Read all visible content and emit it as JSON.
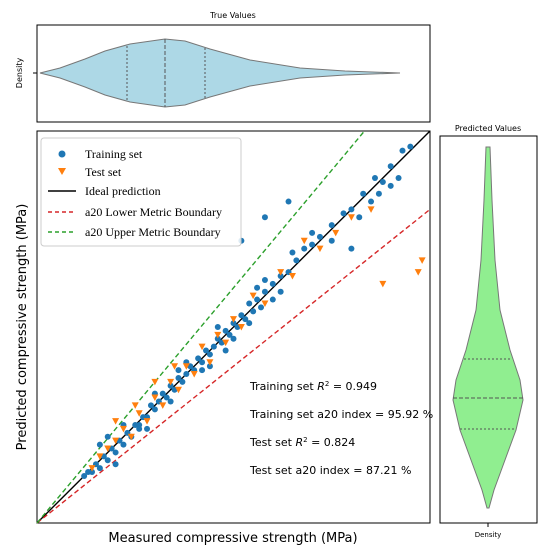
{
  "chart_data": [
    {
      "type": "violin",
      "title": "True Values",
      "ylabel": "Density",
      "color": "#add8e6",
      "orientation": "horizontal",
      "quartile_lines": 3
    },
    {
      "type": "scatter",
      "xlabel": "Measured compressive strength (MPa)",
      "ylabel": "Predicted compressive strength (MPa)",
      "xlim": [
        0,
        100
      ],
      "ylim": [
        0,
        100
      ],
      "legend_position": "top-left",
      "legend": [
        {
          "label": "Training set",
          "marker": "circle",
          "color": "#1f77b4"
        },
        {
          "label": "Test set",
          "marker": "triangle-down",
          "color": "#ff7f0e"
        },
        {
          "label": "Ideal prediction",
          "line": "solid",
          "color": "#000000"
        },
        {
          "label": "a20 Lower Metric Boundary",
          "line": "dashed",
          "color": "#d62728"
        },
        {
          "label": "a20 Upper Metric Boundary",
          "line": "dashed",
          "color": "#2ca02c"
        }
      ],
      "lines": [
        {
          "name": "Ideal prediction",
          "slope": 1.0,
          "color": "#000000",
          "style": "solid"
        },
        {
          "name": "a20 Lower Metric Boundary",
          "slope": 0.8,
          "color": "#d62728",
          "style": "dashed"
        },
        {
          "name": "a20 Upper Metric Boundary",
          "slope": 1.2,
          "color": "#2ca02c",
          "style": "dashed"
        }
      ],
      "annotations": [
        "Training set $R^2$ = 0.949",
        "Training set a20 index = 95.92 %",
        "Test set $R^2$ = 0.824",
        "Test set a20 index = 87.21 %"
      ],
      "series": [
        {
          "name": "Training set",
          "marker": "circle",
          "color": "#1f77b4",
          "points": [
            [
              12,
              12
            ],
            [
              13,
              13
            ],
            [
              14,
              13
            ],
            [
              15,
              15
            ],
            [
              16,
              14
            ],
            [
              17,
              17
            ],
            [
              18,
              16
            ],
            [
              19,
              19
            ],
            [
              20,
              18
            ],
            [
              21,
              21
            ],
            [
              22,
              20
            ],
            [
              23,
              23
            ],
            [
              24,
              22
            ],
            [
              25,
              25
            ],
            [
              26,
              25
            ],
            [
              27,
              27
            ],
            [
              28,
              27
            ],
            [
              29,
              30
            ],
            [
              30,
              29
            ],
            [
              31,
              31
            ],
            [
              32,
              33
            ],
            [
              33,
              32
            ],
            [
              34,
              35
            ],
            [
              35,
              34
            ],
            [
              36,
              37
            ],
            [
              37,
              36
            ],
            [
              38,
              38
            ],
            [
              39,
              40
            ],
            [
              40,
              39
            ],
            [
              41,
              42
            ],
            [
              42,
              41
            ],
            [
              43,
              44
            ],
            [
              44,
              43
            ],
            [
              45,
              45
            ],
            [
              46,
              47
            ],
            [
              47,
              46
            ],
            [
              48,
              49
            ],
            [
              49,
              48
            ],
            [
              50,
              51
            ],
            [
              51,
              50
            ],
            [
              52,
              53
            ],
            [
              53,
              52
            ],
            [
              54,
              56
            ],
            [
              55,
              54
            ],
            [
              56,
              57
            ],
            [
              57,
              55
            ],
            [
              58,
              59
            ],
            [
              60,
              61
            ],
            [
              62,
              63
            ],
            [
              64,
              64
            ],
            [
              66,
              67
            ],
            [
              68,
              70
            ],
            [
              70,
              71
            ],
            [
              72,
              73
            ],
            [
              75,
              76
            ],
            [
              78,
              79
            ],
            [
              80,
              80
            ],
            [
              83,
              84
            ],
            [
              86,
              88
            ],
            [
              88,
              87
            ],
            [
              90,
              91
            ],
            [
              93,
              95
            ],
            [
              95,
              96
            ],
            [
              18,
              22
            ],
            [
              22,
              25
            ],
            [
              26,
              24
            ],
            [
              30,
              33
            ],
            [
              34,
              31
            ],
            [
              38,
              41
            ],
            [
              42,
              39
            ],
            [
              46,
              50
            ],
            [
              50,
              47
            ],
            [
              54,
              51
            ],
            [
              58,
              62
            ],
            [
              62,
              59
            ],
            [
              65,
              69
            ],
            [
              70,
              74
            ],
            [
              75,
              72
            ],
            [
              82,
              78
            ],
            [
              85,
              82
            ],
            [
              90,
              86
            ],
            [
              52,
              72
            ],
            [
              58,
              78
            ],
            [
              64,
              82
            ],
            [
              80,
              70
            ],
            [
              87,
              84
            ],
            [
              92,
              88
            ],
            [
              20,
              15
            ],
            [
              16,
              20
            ],
            [
              28,
              24
            ],
            [
              36,
              39
            ],
            [
              44,
              40
            ],
            [
              48,
              44
            ],
            [
              56,
              60
            ],
            [
              60,
              57
            ]
          ]
        },
        {
          "name": "Test set",
          "marker": "triangle-down",
          "color": "#ff7f0e",
          "points": [
            [
              14,
              14
            ],
            [
              16,
              17
            ],
            [
              18,
              19
            ],
            [
              20,
              21
            ],
            [
              22,
              24
            ],
            [
              24,
              22
            ],
            [
              26,
              28
            ],
            [
              28,
              26
            ],
            [
              30,
              32
            ],
            [
              32,
              30
            ],
            [
              34,
              36
            ],
            [
              36,
              34
            ],
            [
              38,
              40
            ],
            [
              40,
              38
            ],
            [
              42,
              45
            ],
            [
              44,
              41
            ],
            [
              46,
              48
            ],
            [
              48,
              46
            ],
            [
              50,
              52
            ],
            [
              52,
              50
            ],
            [
              55,
              58
            ],
            [
              58,
              56
            ],
            [
              62,
              64
            ],
            [
              65,
              63
            ],
            [
              68,
              72
            ],
            [
              72,
              70
            ],
            [
              76,
              74
            ],
            [
              80,
              78
            ],
            [
              85,
              80
            ],
            [
              98,
              67
            ],
            [
              97,
              64
            ],
            [
              88,
              61
            ],
            [
              30,
              36
            ],
            [
              35,
              40
            ],
            [
              25,
              30
            ],
            [
              20,
              26
            ]
          ]
        }
      ]
    },
    {
      "type": "violin",
      "title": "Predicted Values",
      "xlabel": "Density",
      "color": "#90ee90",
      "orientation": "vertical",
      "quartile_lines": 3
    }
  ]
}
